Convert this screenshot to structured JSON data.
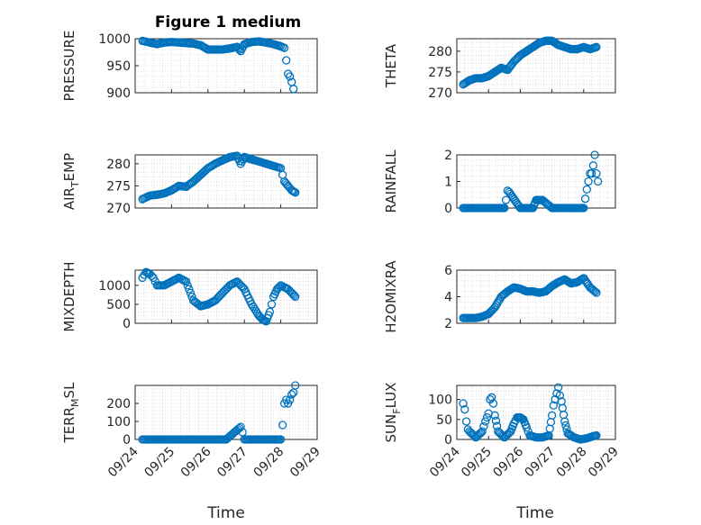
{
  "figure": {
    "title": "Figure 1 medium"
  },
  "x_axis": {
    "label": "Time",
    "tick_labels": [
      "09/24",
      "09/25",
      "09/26",
      "09/27",
      "09/28",
      "09/29"
    ],
    "tick_values": [
      0,
      1,
      2,
      3,
      4,
      5
    ]
  },
  "chart_data": [
    {
      "type": "scatter",
      "ylabel": "PRESSURE",
      "title": "Figure 1 medium",
      "ylim": [
        900,
        1000
      ],
      "yticks": [
        900,
        950,
        1000
      ],
      "grid": true,
      "x": [
        0.2,
        0.4,
        0.6,
        0.8,
        1.0,
        1.2,
        1.4,
        1.6,
        1.8,
        2.0,
        2.2,
        2.4,
        2.6,
        2.8,
        2.9,
        3.0,
        3.2,
        3.4,
        3.6,
        3.8,
        4.0,
        4.1,
        4.15,
        4.2,
        4.25,
        4.3,
        4.35
      ],
      "y": [
        996,
        993,
        990,
        993,
        994,
        993,
        992,
        991,
        988,
        980,
        980,
        980,
        982,
        985,
        977,
        990,
        994,
        995,
        993,
        990,
        986,
        983,
        960,
        935,
        930,
        920,
        907
      ]
    },
    {
      "type": "scatter",
      "ylabel": "THETA",
      "ylim": [
        270,
        283
      ],
      "yticks": [
        270,
        275,
        280
      ],
      "grid": true,
      "x": [
        0.2,
        0.4,
        0.6,
        0.8,
        1.0,
        1.2,
        1.4,
        1.6,
        1.8,
        2.0,
        2.2,
        2.4,
        2.6,
        2.8,
        3.0,
        3.2,
        3.4,
        3.6,
        3.8,
        4.0,
        4.2,
        4.4
      ],
      "y": [
        272,
        273,
        273.5,
        273.5,
        274,
        275,
        276,
        275.5,
        277.5,
        279,
        280,
        281,
        282,
        282.5,
        282.5,
        281.5,
        281,
        280.5,
        280.5,
        281,
        280.5,
        281
      ]
    },
    {
      "type": "scatter",
      "ylabel": "AIR_TEMP",
      "ylim": [
        270,
        282
      ],
      "yticks": [
        270,
        275,
        280
      ],
      "grid": true,
      "x": [
        0.2,
        0.4,
        0.6,
        0.8,
        1.0,
        1.2,
        1.4,
        1.6,
        1.8,
        2.0,
        2.2,
        2.4,
        2.6,
        2.8,
        2.9,
        3.0,
        3.2,
        3.4,
        3.6,
        3.8,
        4.0,
        4.1,
        4.2,
        4.3,
        4.4
      ],
      "y": [
        272,
        272.8,
        273,
        273.3,
        274,
        275,
        274.8,
        276,
        277.5,
        279,
        280,
        280.8,
        281.5,
        281.8,
        280,
        281.5,
        281,
        280.5,
        280,
        279.5,
        279,
        276,
        275,
        274,
        273.5
      ]
    },
    {
      "type": "scatter",
      "ylabel": "RAINFALL",
      "ylim": [
        0,
        2
      ],
      "yticks": [
        0,
        1,
        2
      ],
      "grid": true,
      "x": [
        0.2,
        0.6,
        1.0,
        1.5,
        1.55,
        1.6,
        1.65,
        2.0,
        2.4,
        2.5,
        2.6,
        2.7,
        3.0,
        3.5,
        4.0,
        4.1,
        4.15,
        4.2,
        4.25,
        4.3,
        4.35,
        4.4,
        4.45
      ],
      "y": [
        0,
        0,
        0,
        0,
        0.3,
        0.65,
        0.6,
        0,
        0,
        0.3,
        0.3,
        0.3,
        0,
        0,
        0,
        0.7,
        1.0,
        1.3,
        1.3,
        1.6,
        2.0,
        1.3,
        1.0
      ]
    },
    {
      "type": "scatter",
      "ylabel": "MIXDEPTH",
      "ylim": [
        0,
        1400
      ],
      "yticks": [
        0,
        500,
        1000
      ],
      "grid": true,
      "x": [
        0.2,
        0.3,
        0.4,
        0.5,
        0.6,
        0.8,
        1.0,
        1.2,
        1.4,
        1.6,
        1.8,
        2.0,
        2.2,
        2.4,
        2.6,
        2.8,
        3.0,
        3.2,
        3.4,
        3.5,
        3.6,
        3.7,
        3.8,
        3.9,
        4.0,
        4.1,
        4.2,
        4.3,
        4.4
      ],
      "y": [
        1200,
        1350,
        1300,
        1200,
        1000,
        1000,
        1100,
        1200,
        1100,
        600,
        450,
        500,
        600,
        800,
        1000,
        1100,
        900,
        500,
        200,
        100,
        50,
        300,
        700,
        900,
        1000,
        950,
        900,
        800,
        700
      ]
    },
    {
      "type": "scatter",
      "ylabel": "H2OMIXRA",
      "ylim": [
        2,
        6
      ],
      "yticks": [
        2,
        4,
        6
      ],
      "grid": true,
      "x": [
        0.2,
        0.4,
        0.6,
        0.8,
        1.0,
        1.2,
        1.4,
        1.6,
        1.8,
        2.0,
        2.2,
        2.4,
        2.6,
        2.8,
        3.0,
        3.2,
        3.4,
        3.6,
        3.8,
        4.0,
        4.2,
        4.4
      ],
      "y": [
        2.4,
        2.4,
        2.4,
        2.5,
        2.7,
        3.2,
        4.0,
        4.4,
        4.7,
        4.6,
        4.4,
        4.4,
        4.3,
        4.4,
        4.8,
        5.1,
        5.3,
        5.0,
        5.1,
        5.4,
        4.7,
        4.3
      ]
    },
    {
      "type": "scatter",
      "ylabel": "TERR_MSL",
      "ylim": [
        0,
        300
      ],
      "yticks": [
        0,
        100,
        200
      ],
      "grid": true,
      "x": [
        0.2,
        0.6,
        1.0,
        1.5,
        2.0,
        2.5,
        2.9,
        2.95,
        3.0,
        3.5,
        4.0,
        4.05,
        4.1,
        4.15,
        4.2,
        4.25,
        4.3,
        4.35,
        4.4
      ],
      "y": [
        0,
        0,
        0,
        0,
        0,
        0,
        70,
        40,
        0,
        0,
        0,
        80,
        200,
        220,
        200,
        220,
        250,
        260,
        300
      ]
    },
    {
      "type": "scatter",
      "ylabel": "SUN_FLUX",
      "ylim": [
        0,
        135
      ],
      "yticks": [
        0,
        50,
        100
      ],
      "grid": true,
      "x": [
        0.2,
        0.25,
        0.3,
        0.35,
        0.4,
        0.6,
        0.8,
        0.9,
        1.0,
        1.05,
        1.1,
        1.15,
        1.2,
        1.3,
        1.5,
        1.7,
        1.8,
        1.9,
        2.0,
        2.1,
        2.2,
        2.3,
        2.5,
        2.7,
        2.9,
        3.0,
        3.05,
        3.1,
        3.15,
        3.2,
        3.25,
        3.3,
        3.4,
        3.5,
        3.7,
        3.9,
        4.1,
        4.3,
        4.4
      ],
      "y": [
        90,
        75,
        45,
        25,
        20,
        5,
        20,
        45,
        65,
        100,
        105,
        90,
        60,
        20,
        5,
        20,
        40,
        55,
        55,
        50,
        30,
        10,
        5,
        5,
        10,
        60,
        85,
        100,
        115,
        130,
        110,
        95,
        45,
        15,
        5,
        0,
        3,
        8,
        10
      ]
    }
  ],
  "panel_ylabels": [
    {
      "main": "PRESSURE"
    },
    {
      "main": "THETA"
    },
    {
      "main": "AIR",
      "sub": "T",
      "tail": "EMP"
    },
    {
      "main": "RAINFALL"
    },
    {
      "main": "MIXDEPTH"
    },
    {
      "main": "H2OMIXRA"
    },
    {
      "main": "TERR",
      "sub": "M",
      "tail": "SL"
    },
    {
      "main": "SUN",
      "sub": "F",
      "tail": "LUX"
    }
  ],
  "colors": {
    "marker": "#0072BD",
    "axes": "#262626",
    "grid": "#c8c8c8"
  }
}
